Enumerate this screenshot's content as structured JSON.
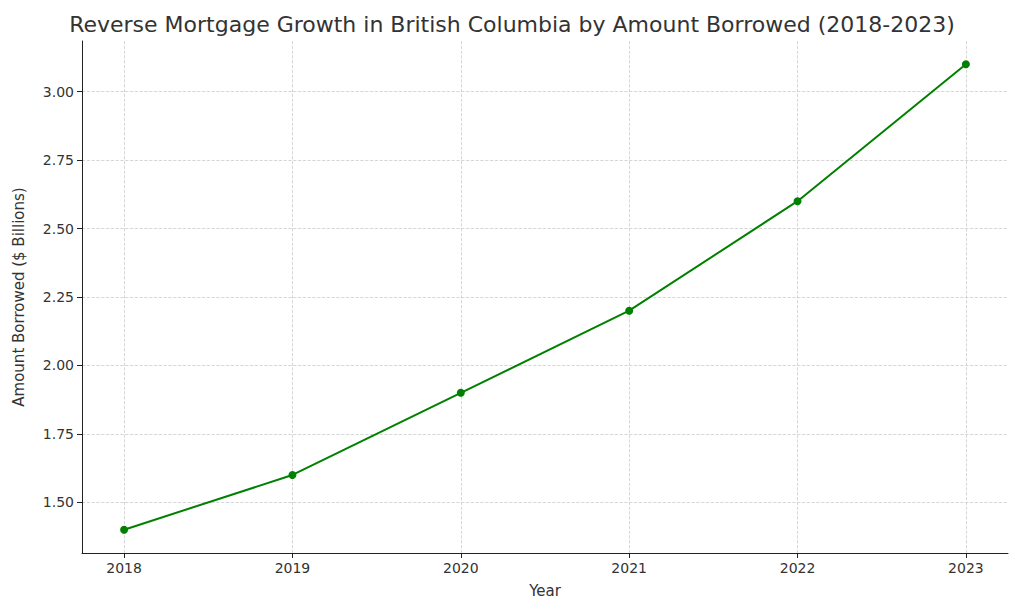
{
  "chart_data": {
    "type": "line",
    "title": "Reverse Mortgage Growth in British Columbia by Amount Borrowed (2018-2023)",
    "x_label": "Year",
    "y_label": "Amount Borrowed ($ Billions)",
    "x": [
      2018,
      2019,
      2020,
      2021,
      2022,
      2023
    ],
    "values": [
      1.4,
      1.6,
      1.9,
      2.2,
      2.6,
      3.1
    ],
    "color": "#008000",
    "marker": "circle",
    "line_style": "solid",
    "xlim": [
      2017.75,
      2023.25
    ],
    "xticks": [
      2018,
      2019,
      2020,
      2021,
      2022,
      2023
    ],
    "ylim": [
      1.315,
      3.185
    ],
    "yticks": [
      {
        "value": 1.5,
        "label": "1.50"
      },
      {
        "value": 1.75,
        "label": "1.75"
      },
      {
        "value": 2.0,
        "label": "2.00"
      },
      {
        "value": 2.25,
        "label": "2.25"
      },
      {
        "value": 2.5,
        "label": "2.50"
      },
      {
        "value": 2.75,
        "label": "2.75"
      },
      {
        "value": 3.0,
        "label": "3.00"
      }
    ],
    "grid": true
  }
}
